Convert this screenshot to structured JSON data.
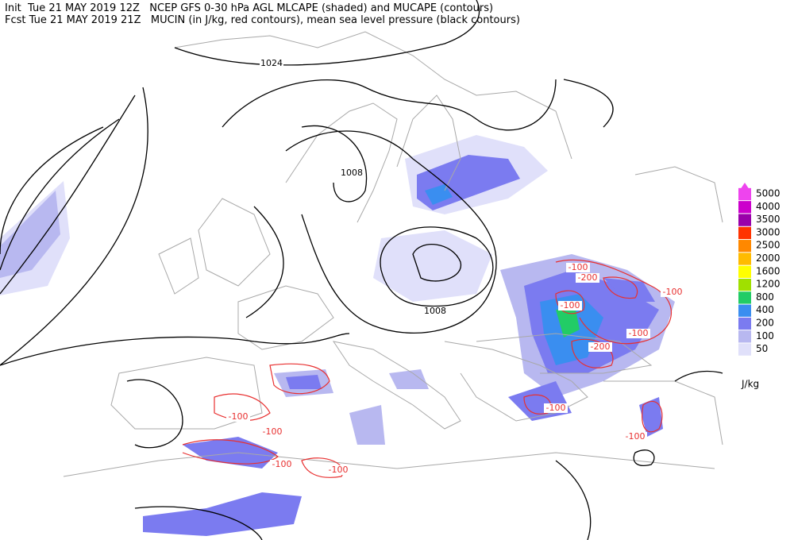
{
  "header": {
    "line1": "Init  Tue 21 MAY 2019 12Z   NCEP GFS 0-30 hPa AGL MLCAPE (shaded) and MUCAPE (contours)",
    "line2": "Fcst Tue 21 MAY 2019 21Z   MUCIN (in J/kg, red contours), mean sea level pressure (black contours)"
  },
  "legend": {
    "unit": "J/kg",
    "levels": [
      {
        "label": "5000",
        "color": "#ee44ee"
      },
      {
        "label": "4000",
        "color": "#cc00cc"
      },
      {
        "label": "3500",
        "color": "#9900aa"
      },
      {
        "label": "3000",
        "color": "#ff3300"
      },
      {
        "label": "2500",
        "color": "#ff8800"
      },
      {
        "label": "2000",
        "color": "#ffbb00"
      },
      {
        "label": "1600",
        "color": "#ffff00"
      },
      {
        "label": "1200",
        "color": "#a0e000"
      },
      {
        "label": "800",
        "color": "#22cc66"
      },
      {
        "label": "400",
        "color": "#3a8ef0"
      },
      {
        "label": "200",
        "color": "#7b7bf0"
      },
      {
        "label": "100",
        "color": "#b8b8f0"
      },
      {
        "label": "50",
        "color": "#e0e0fa"
      }
    ]
  },
  "contour_labels": {
    "pressure": [
      "1024",
      "1008",
      "1008"
    ],
    "mucin": [
      "-100",
      "-200",
      "-100",
      "-100",
      "-200",
      "-100",
      "-100",
      "-100",
      "-100",
      "-100",
      "-100",
      "-100"
    ]
  }
}
